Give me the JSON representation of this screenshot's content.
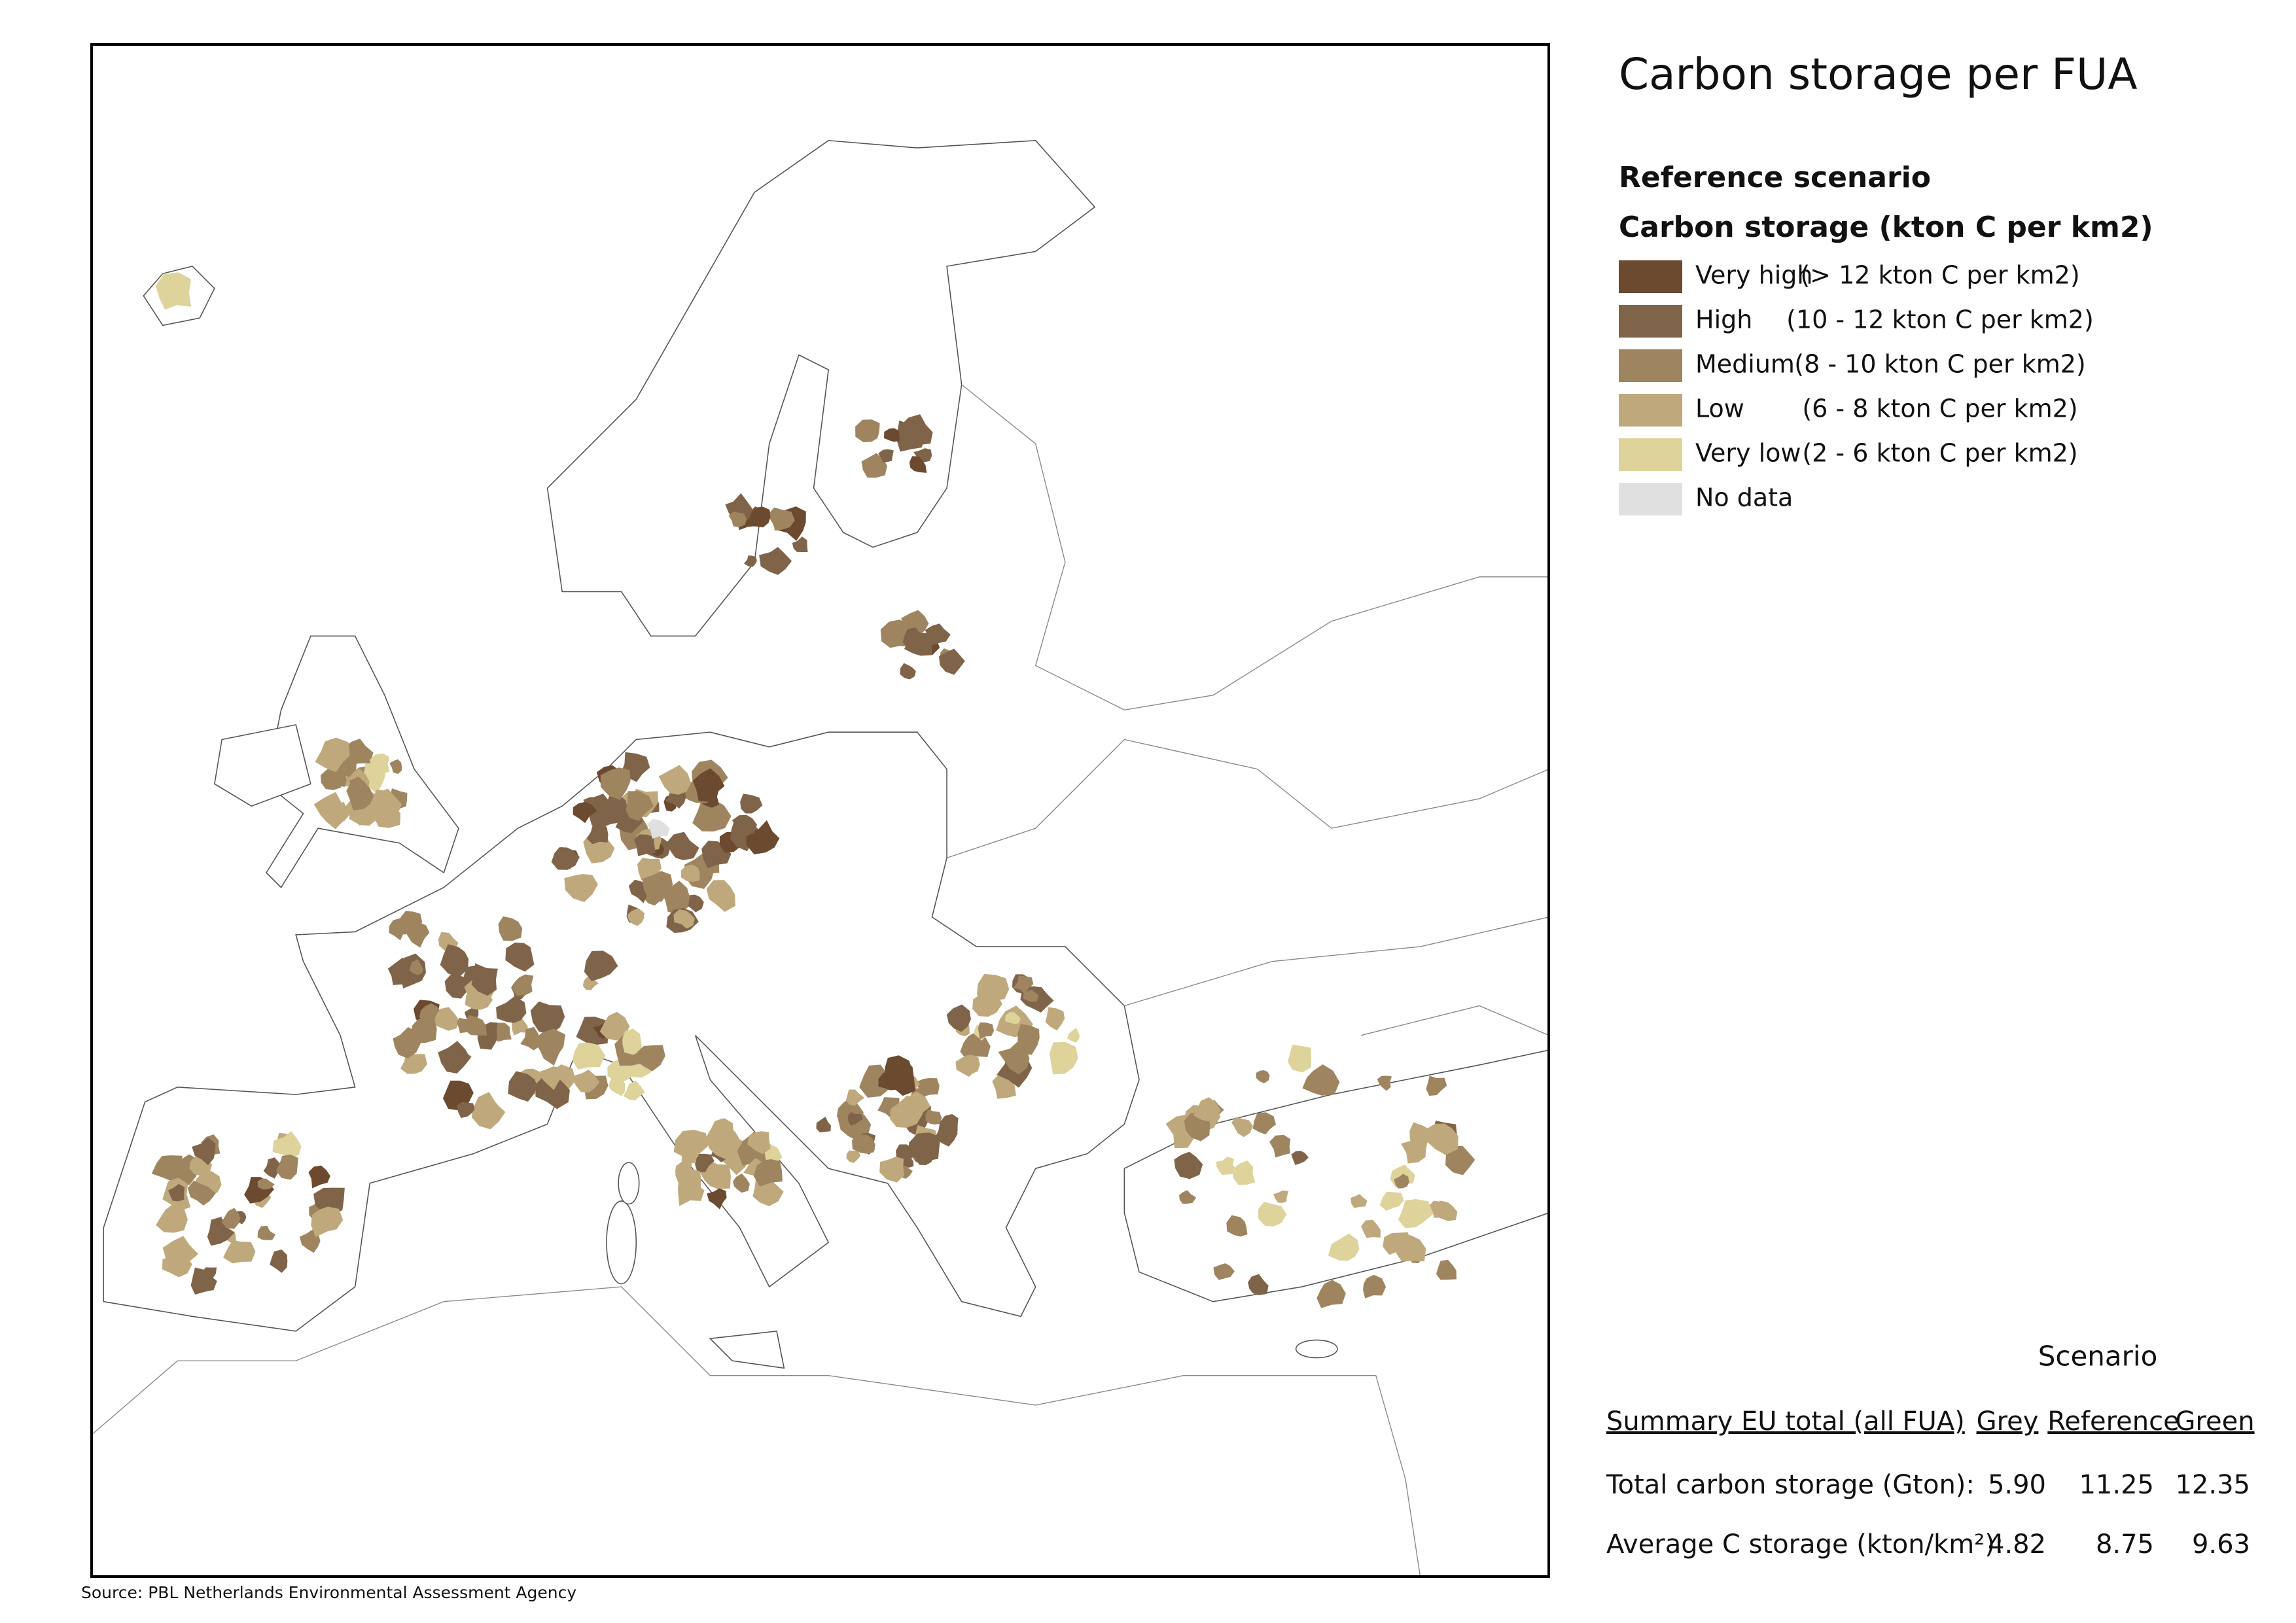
{
  "title": "Carbon storage per FUA",
  "legend": {
    "heading": "Reference scenario",
    "subheading": "Carbon storage (kton C per km2)",
    "items": [
      {
        "label": "Very high",
        "range": "(> 12 kton C per km2)",
        "color": "#6b4a2f"
      },
      {
        "label": "High",
        "range": "(10 - 12 kton C per km2)",
        "color": "#806449"
      },
      {
        "label": "Medium",
        "range": "(8 - 10 kton C per km2)",
        "color": "#9e8560"
      },
      {
        "label": "Low",
        "range": "(6 - 8 kton C per km2)",
        "color": "#bfa97c"
      },
      {
        "label": "Very low",
        "range": "(2 - 6 kton C per km2)",
        "color": "#ddd39b"
      },
      {
        "label": "No data",
        "color": "#e0e0e0"
      }
    ]
  },
  "summary": {
    "heading": "Scenario",
    "columns": [
      "Summary EU total (all FUA)",
      "Grey",
      "Reference",
      "Green"
    ],
    "rows": [
      [
        "Total carbon storage (Gton):",
        "5.90",
        "11.25",
        "12.35"
      ],
      [
        "Average C storage (kton/km²):",
        "4.82",
        "8.75",
        "9.63"
      ]
    ]
  },
  "source": "Source: PBL Netherlands Environmental Assessment Agency"
}
